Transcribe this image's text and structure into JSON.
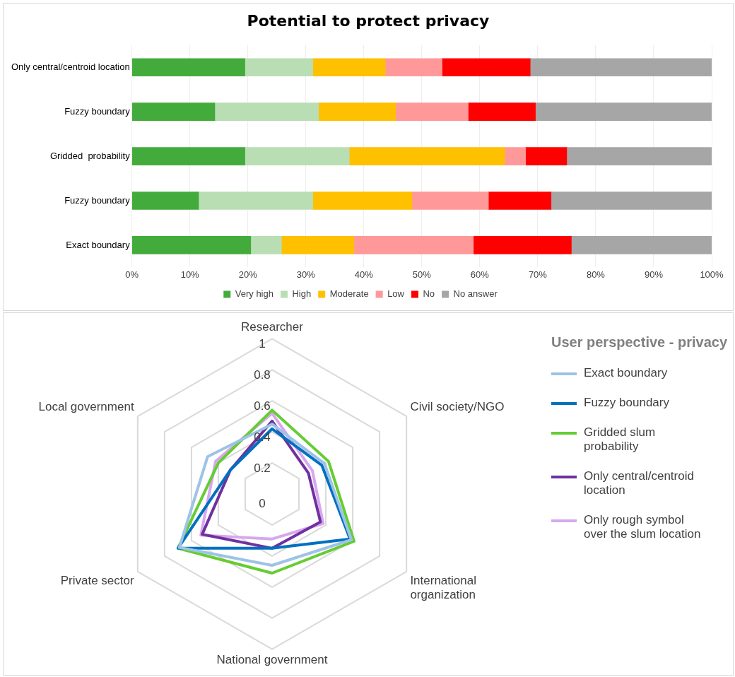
{
  "chart_data": [
    {
      "type": "bar",
      "title": "Potential to protect privacy",
      "orientation": "horizontal",
      "stacked": true,
      "categories": [
        "Only central/centroid location",
        "Fuzzy boundary",
        "Gridded  probability",
        "Fuzzy boundary",
        "Exact boundary"
      ],
      "series": [
        {
          "name": "Very high",
          "color": "#43ab3c",
          "values": [
            19.5,
            14.3,
            19.5,
            11.5,
            20.5
          ]
        },
        {
          "name": "High",
          "color": "#b9deb3",
          "values": [
            11.7,
            17.9,
            18.0,
            19.7,
            5.3
          ]
        },
        {
          "name": "Moderate",
          "color": "#ffc000",
          "values": [
            12.5,
            13.3,
            26.8,
            17.1,
            12.5
          ]
        },
        {
          "name": "Low",
          "color": "#ff9999",
          "values": [
            9.8,
            12.5,
            3.6,
            13.2,
            20.6
          ]
        },
        {
          "name": "No",
          "color": "#ff0000",
          "values": [
            15.2,
            11.6,
            7.1,
            10.8,
            16.9
          ]
        },
        {
          "name": "No answer",
          "color": "#a6a6a6",
          "values": [
            31.3,
            30.4,
            25.0,
            27.7,
            24.2
          ]
        }
      ],
      "xlim": [
        0,
        100
      ],
      "xticks": [
        {
          "value": 0,
          "label": "0%"
        },
        {
          "value": 10,
          "label": "10%"
        },
        {
          "value": 20,
          "label": "20%"
        },
        {
          "value": 30,
          "label": "30%"
        },
        {
          "value": 40,
          "label": "40%"
        },
        {
          "value": 50,
          "label": "50%"
        },
        {
          "value": 60,
          "label": "60%"
        },
        {
          "value": 70,
          "label": "70%"
        },
        {
          "value": 80,
          "label": "80%"
        },
        {
          "value": 90,
          "label": "90%"
        },
        {
          "value": 100,
          "label": "100%"
        }
      ],
      "grid": "x",
      "legend": "bottom"
    },
    {
      "type": "radar",
      "legend_title": "User perspective - privacy",
      "categories": [
        "Researcher",
        "Civil society/NGO",
        "International organization",
        "National government",
        "Private sector",
        "Local government"
      ],
      "series": [
        {
          "name": "Exact boundary",
          "color": "#9dc3e6",
          "values": [
            0.45,
            0.39,
            0.59,
            0.46,
            0.69,
            0.48
          ]
        },
        {
          "name": "Fuzzy boundary",
          "color": "#0070c0",
          "values": [
            0.42,
            0.37,
            0.58,
            0.35,
            0.7,
            0.31
          ]
        },
        {
          "name": "Gridded slum probability",
          "color": "#66cc33",
          "values": [
            0.54,
            0.42,
            0.61,
            0.51,
            0.7,
            0.4
          ]
        },
        {
          "name": "Only central/centroid location",
          "color": "#7030a0",
          "values": [
            0.47,
            0.27,
            0.36,
            0.35,
            0.52,
            0.31
          ]
        },
        {
          "name": "Only rough symbol over the slum location",
          "color": "#d6a8ee",
          "values": [
            0.52,
            0.3,
            0.38,
            0.29,
            0.53,
            0.42
          ]
        }
      ],
      "ylim": [
        0,
        1
      ],
      "yticks": [
        0,
        0.2,
        0.4,
        0.6,
        0.8,
        1
      ],
      "grid": true,
      "legend": "right"
    }
  ]
}
